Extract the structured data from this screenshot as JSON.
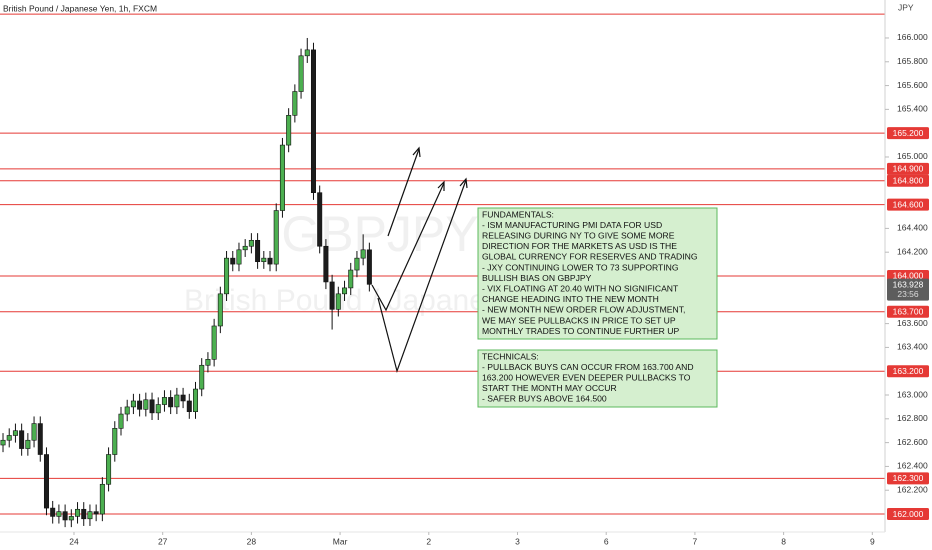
{
  "chart_data": {
    "type": "candlestick",
    "title": "British Pound / Japanese Yen, 1h, FXCM",
    "currency": "JPY",
    "watermark": {
      "symbol": "GBPJPY",
      "description": "British Pound / Japanese Yen"
    },
    "x": [
      -0.8,
      -0.73,
      -0.66,
      -0.59,
      -0.52,
      -0.45,
      -0.38,
      -0.31,
      -0.24,
      -0.17,
      -0.1,
      -0.03,
      0.04,
      0.11,
      0.18,
      0.25,
      0.32,
      0.39,
      0.46,
      0.53,
      0.6,
      0.67,
      0.74,
      0.81,
      0.88,
      0.95,
      1.02,
      1.09,
      1.16,
      1.23,
      1.3,
      1.37,
      1.44,
      1.51,
      1.58,
      1.65,
      1.72,
      1.79,
      1.86,
      1.93,
      2.0,
      2.07,
      2.14,
      2.21,
      2.28,
      2.35,
      2.42,
      2.49,
      2.56,
      2.63,
      2.7,
      2.77,
      2.84,
      2.91,
      2.98,
      3.05,
      3.12,
      3.19,
      3.26,
      3.33
    ],
    "open": [
      162.58,
      162.62,
      162.66,
      162.7,
      162.55,
      162.62,
      162.76,
      162.5,
      162.05,
      161.98,
      162.02,
      161.95,
      161.98,
      162.04,
      161.96,
      162.02,
      162.0,
      162.25,
      162.5,
      162.72,
      162.84,
      162.9,
      162.95,
      162.88,
      162.96,
      162.85,
      162.92,
      162.98,
      162.9,
      163.0,
      162.95,
      162.86,
      163.05,
      163.25,
      163.3,
      163.58,
      163.85,
      164.15,
      164.1,
      164.22,
      164.25,
      164.3,
      164.12,
      164.15,
      164.1,
      164.55,
      165.1,
      165.35,
      165.55,
      165.85,
      165.9,
      164.7,
      164.25,
      163.95,
      163.72,
      163.85,
      163.9,
      164.05,
      164.15,
      164.22
    ],
    "high": [
      162.68,
      162.72,
      162.76,
      162.76,
      162.68,
      162.82,
      162.82,
      162.56,
      162.11,
      162.08,
      162.08,
      162.04,
      162.1,
      162.1,
      162.08,
      162.08,
      162.31,
      162.56,
      162.78,
      162.9,
      162.96,
      163.01,
      163.01,
      163.02,
      163.02,
      162.98,
      163.04,
      163.04,
      163.06,
      163.06,
      163.01,
      163.11,
      163.31,
      163.36,
      163.64,
      163.91,
      164.21,
      164.21,
      164.28,
      164.31,
      164.36,
      164.36,
      164.21,
      164.21,
      164.61,
      165.16,
      165.41,
      165.61,
      165.91,
      166.0,
      165.96,
      164.76,
      164.31,
      164.01,
      163.91,
      163.96,
      164.11,
      164.21,
      164.35,
      164.28
    ],
    "low": [
      162.52,
      162.56,
      162.6,
      162.49,
      162.49,
      162.56,
      162.44,
      161.99,
      161.92,
      161.92,
      161.89,
      161.89,
      161.92,
      161.9,
      161.9,
      161.94,
      161.94,
      162.19,
      162.44,
      162.66,
      162.78,
      162.84,
      162.82,
      162.82,
      162.79,
      162.79,
      162.86,
      162.84,
      162.84,
      162.89,
      162.8,
      162.8,
      162.99,
      163.19,
      163.24,
      163.52,
      163.79,
      164.04,
      164.04,
      164.16,
      164.19,
      164.06,
      164.06,
      164.04,
      164.04,
      164.49,
      165.04,
      165.29,
      165.49,
      165.79,
      164.64,
      164.19,
      163.89,
      163.55,
      163.66,
      163.79,
      163.84,
      163.99,
      164.09,
      163.87
    ],
    "close": [
      162.62,
      162.66,
      162.7,
      162.55,
      162.62,
      162.76,
      162.5,
      162.05,
      161.98,
      162.02,
      161.95,
      161.98,
      162.04,
      161.96,
      162.02,
      162.0,
      162.25,
      162.5,
      162.72,
      162.84,
      162.9,
      162.95,
      162.88,
      162.96,
      162.85,
      162.92,
      162.98,
      162.9,
      163.0,
      162.95,
      162.86,
      163.05,
      163.25,
      163.3,
      163.58,
      163.85,
      164.15,
      164.1,
      164.22,
      164.25,
      164.3,
      164.12,
      164.15,
      164.1,
      164.55,
      165.1,
      165.35,
      165.55,
      165.85,
      165.9,
      164.7,
      164.25,
      163.95,
      163.72,
      163.85,
      163.9,
      164.05,
      164.15,
      164.22,
      163.93
    ],
    "up_color": "#4caf50",
    "down_color": "#1c1c1c",
    "xlim": [
      -0.834,
      9.143
    ],
    "xticks": [
      {
        "value": 0,
        "label": "24"
      },
      {
        "value": 1,
        "label": "27"
      },
      {
        "value": 2,
        "label": "28"
      },
      {
        "value": 3,
        "label": "Mar"
      },
      {
        "value": 4,
        "label": "2"
      },
      {
        "value": 5,
        "label": "3"
      },
      {
        "value": 6,
        "label": "6"
      },
      {
        "value": 7,
        "label": "7"
      },
      {
        "value": 8,
        "label": "8"
      },
      {
        "value": 9,
        "label": "9"
      }
    ],
    "ylim": [
      161.849,
      166.319
    ],
    "yticks": [
      {
        "value": 166,
        "label": "166.000"
      },
      {
        "value": 165.8,
        "label": "165.800"
      },
      {
        "value": 165.6,
        "label": "165.600"
      },
      {
        "value": 165.4,
        "label": "165.400"
      },
      {
        "value": 165,
        "label": "165.000"
      },
      {
        "value": 164.4,
        "label": "164.400"
      },
      {
        "value": 164.2,
        "label": "164.200"
      },
      {
        "value": 163.6,
        "label": "163.600"
      },
      {
        "value": 163.4,
        "label": "163.400"
      },
      {
        "value": 163,
        "label": "163.000"
      },
      {
        "value": 162.8,
        "label": "162.800"
      },
      {
        "value": 162.6,
        "label": "162.600"
      },
      {
        "value": 162.4,
        "label": "162.400"
      },
      {
        "value": 162.2,
        "label": "162.200"
      }
    ],
    "levels": [
      {
        "value": 166.2
      },
      {
        "value": 165.2,
        "label": "165.200"
      },
      {
        "value": 164.9,
        "label": "164.900"
      },
      {
        "value": 164.8,
        "label": "164.800"
      },
      {
        "value": 164.6,
        "label": "164.600"
      },
      {
        "value": 164,
        "label": "164.000"
      },
      {
        "value": 163.7,
        "label": "163.700"
      },
      {
        "value": 163.2,
        "label": "163.200"
      },
      {
        "value": 162.3,
        "label": "162.300"
      },
      {
        "value": 162,
        "label": "162.000"
      }
    ],
    "level_color": "#e53935",
    "last_price": 163.928,
    "countdown": "23:56",
    "annotations": [
      {
        "lines": [
          "FUNDAMENTALS:",
          "- ISM MANUFACTURING PMI DATA FOR USD",
          "RELEASING DURING NY TO GIVE SOME MORE",
          "DIRECTION FOR THE MARKETS AS USD IS THE",
          "GLOBAL CURRENCY FOR RESERVES AND TRADING",
          "- JXY CONTINUING LOWER TO 73 SUPPORTING",
          "BULLISH BIAS ON GBPJPY",
          "- VIX FLOATING AT 20.40 WITH NO SIGNIFICANT",
          "CHANGE HEADING INTO THE NEW MONTH",
          "- NEW MONTH NEW ORDER FLOW ADJUSTMENT,",
          "WE MAY SEE PULLBACKS IN PRICE TO SET UP",
          "MONTHLY TRADES TO CONTINUE FURTHER UP"
        ]
      },
      {
        "lines": [
          "TECHNICALS:",
          "- PULLBACK BUYS CAN OCCUR FROM 163.700 AND",
          "163.200 HOWEVER EVEN DEEPER PULLBACKS TO",
          "START THE MONTH MAY OCCUR",
          "- SAFER BUYS ABOVE 164.500"
        ]
      }
    ]
  }
}
